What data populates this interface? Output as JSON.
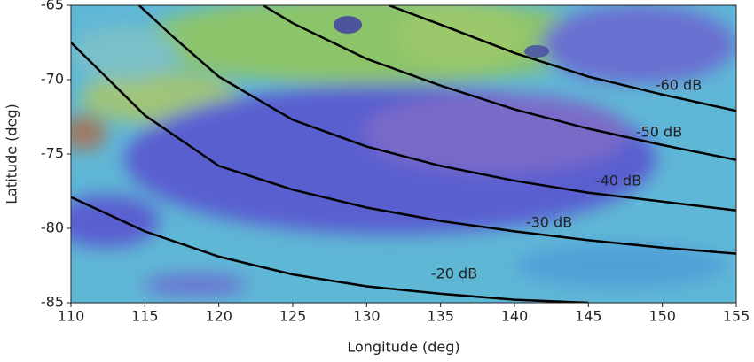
{
  "chart_data": {
    "type": "line",
    "x_label": "Longitude (deg)",
    "y_label": "Latitude (deg)",
    "xlim": [
      110,
      155
    ],
    "ylim": [
      -85,
      -65
    ],
    "xticks": [
      110,
      115,
      120,
      125,
      130,
      135,
      140,
      145,
      150,
      155
    ],
    "yticks": [
      -85,
      -80,
      -75,
      -70,
      -65
    ],
    "color": "#000000",
    "series": [
      {
        "name": "-20 dB",
        "x": [
          110,
          115,
          120,
          125,
          130,
          135,
          140,
          145
        ],
        "values": [
          -77.9,
          -80.2,
          -81.9,
          -83.1,
          -83.9,
          -84.4,
          -84.8,
          -85
        ]
      },
      {
        "name": "-30 dB",
        "x": [
          110,
          115,
          120,
          125,
          130,
          135,
          140,
          145,
          150,
          155
        ],
        "values": [
          -67.5,
          -72.4,
          -75.8,
          -77.4,
          -78.6,
          -79.5,
          -80.2,
          -80.8,
          -81.3,
          -81.7
        ]
      },
      {
        "name": "-40 dB",
        "x": [
          114.6,
          117,
          120,
          125,
          130,
          135,
          140,
          145,
          150,
          155
        ],
        "values": [
          -65,
          -67.2,
          -69.8,
          -72.7,
          -74.5,
          -75.8,
          -76.8,
          -77.6,
          -78.2,
          -78.8
        ]
      },
      {
        "name": "-50 dB",
        "x": [
          123,
          125,
          130,
          135,
          140,
          145,
          150,
          155
        ],
        "values": [
          -65,
          -66.2,
          -68.6,
          -70.4,
          -72.0,
          -73.3,
          -74.4,
          -75.4
        ]
      },
      {
        "name": "-60 dB",
        "x": [
          131.5,
          135,
          140,
          145,
          150,
          155
        ],
        "values": [
          -65,
          -66.3,
          -68.2,
          -69.8,
          -71.0,
          -72.1
        ]
      }
    ]
  }
}
